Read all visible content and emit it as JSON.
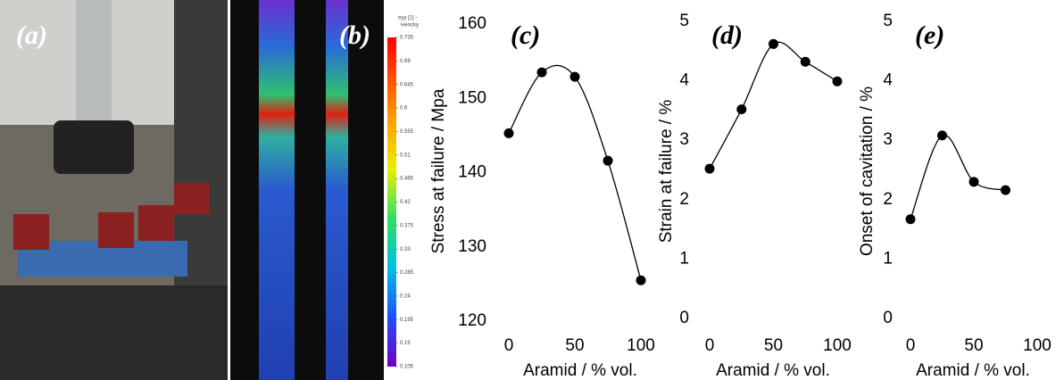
{
  "panels": {
    "a": {
      "label": "(a)"
    },
    "b": {
      "label": "(b)",
      "colorbar": {
        "title": [
          "eyy [1] -",
          "Hencky"
        ],
        "ticks": [
          0.735,
          0.69,
          0.645,
          0.6,
          0.555,
          0.51,
          0.465,
          0.42,
          0.375,
          0.33,
          0.285,
          0.24,
          0.195,
          0.15,
          0.105
        ]
      }
    }
  },
  "chart_data": [
    {
      "type": "line",
      "label": "(c)",
      "x_label": "Aramid / % vol.",
      "y_label": "Stress at failure / Mpa",
      "x": [
        0,
        25,
        50,
        75,
        100
      ],
      "series": [
        {
          "color": "#000000",
          "values": [
            145.3,
            153.5,
            152.9,
            141.6,
            125.5
          ]
        }
      ],
      "xlim": [
        -5,
        110
      ],
      "xticks": [
        0,
        50,
        100
      ],
      "ylim": [
        120,
        160
      ],
      "yticks": [
        120,
        130,
        140,
        150,
        160
      ],
      "smooth": true
    },
    {
      "type": "line",
      "label": "(d)",
      "x_label": "Aramid / % vol.",
      "y_label": "Strain at failure / %",
      "x": [
        0,
        25,
        50,
        75,
        100
      ],
      "series": [
        {
          "color": "#000000",
          "values": [
            2.52,
            3.52,
            4.62,
            4.32,
            3.99
          ]
        }
      ],
      "xlim": [
        -5,
        110
      ],
      "xticks": [
        0,
        50,
        100
      ],
      "ylim": [
        0,
        5
      ],
      "yticks": [
        0,
        1,
        2,
        3,
        4,
        5
      ],
      "smooth": true
    },
    {
      "type": "line",
      "label": "(e)",
      "x_label": "Aramid / % vol.",
      "y_label": "Onset of cavitation / %",
      "x": [
        0,
        25,
        50,
        75
      ],
      "series": [
        {
          "color": "#000000",
          "values": [
            1.67,
            3.08,
            2.3,
            2.16
          ]
        }
      ],
      "xlim": [
        -5,
        110
      ],
      "xticks": [
        0,
        50,
        100
      ],
      "ylim": [
        0,
        5
      ],
      "yticks": [
        0,
        1,
        2,
        3,
        4,
        5
      ],
      "smooth": true
    }
  ]
}
